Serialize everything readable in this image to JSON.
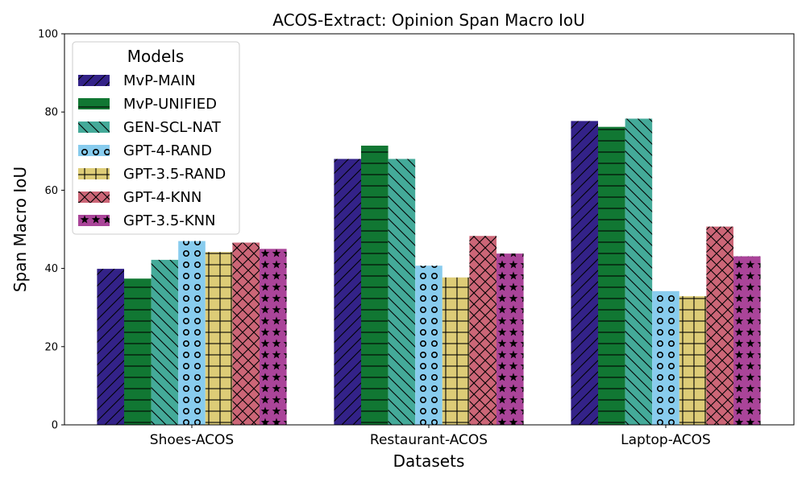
{
  "chart_data": {
    "type": "bar",
    "title": "ACOS-Extract: Opinion Span Macro IoU",
    "xlabel": "Datasets",
    "ylabel": "Span Macro IoU",
    "ylim": [
      0,
      100
    ],
    "yticks": [
      0,
      20,
      40,
      60,
      80,
      100
    ],
    "grid": false,
    "legend": {
      "title": "Models",
      "placement": "top-left"
    },
    "categories": [
      "Shoes-ACOS",
      "Restaurant-ACOS",
      "Laptop-ACOS"
    ],
    "series": [
      {
        "name": "MvP-MAIN",
        "values": [
          39.9,
          68.0,
          77.7
        ],
        "color": "#332288",
        "pattern": "diagonal-slash"
      },
      {
        "name": "MvP-UNIFIED",
        "values": [
          37.4,
          71.4,
          76.2
        ],
        "color": "#117733",
        "pattern": "horizontal-lines"
      },
      {
        "name": "GEN-SCL-NAT",
        "values": [
          42.2,
          68.0,
          78.3
        ],
        "color": "#44AA99",
        "pattern": "diagonal-backslash"
      },
      {
        "name": "GPT-4-RAND",
        "values": [
          47.0,
          40.7,
          34.2
        ],
        "color": "#88CCEE",
        "pattern": "circles"
      },
      {
        "name": "GPT-3.5-RAND",
        "values": [
          44.2,
          37.7,
          32.9
        ],
        "color": "#DDCC77",
        "pattern": "grid"
      },
      {
        "name": "GPT-4-KNN",
        "values": [
          46.6,
          48.3,
          50.7
        ],
        "color": "#CC6677",
        "pattern": "crosshatch"
      },
      {
        "name": "GPT-3.5-KNN",
        "values": [
          45.0,
          43.8,
          43.1
        ],
        "color": "#AA4499",
        "pattern": "stars"
      }
    ]
  }
}
